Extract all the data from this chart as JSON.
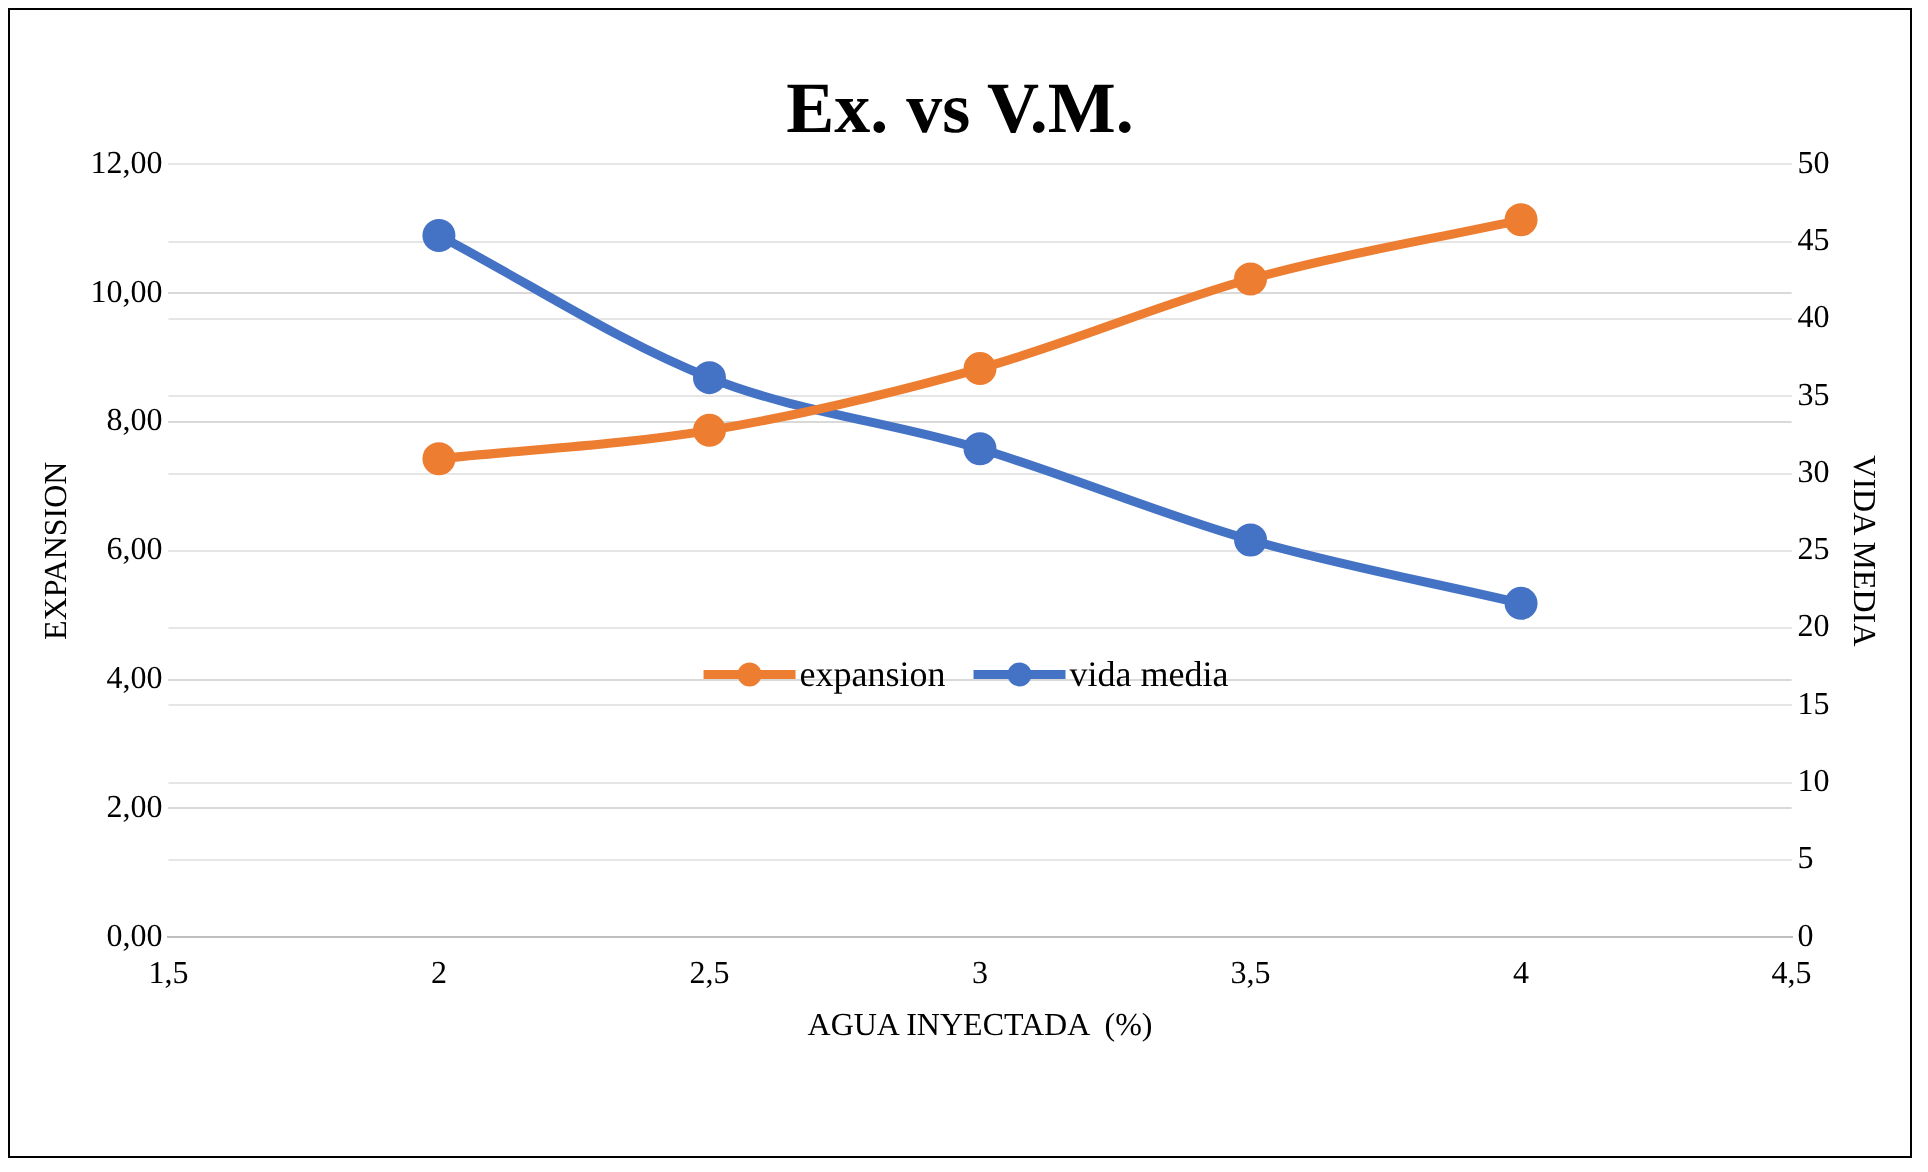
{
  "chart_data": {
    "type": "line",
    "title": "Ex. vs V.M.",
    "xlabel": "AGUA INYECTADA  (%)",
    "ylabel": "EXPANSION",
    "y2label": "VIDA MEDIA",
    "x": [
      2,
      2.5,
      3,
      3.5,
      4
    ],
    "series": [
      {
        "name": "expansion",
        "color": "#ed7d31",
        "values": [
          7.43,
          7.87,
          8.83,
          10.22,
          11.14
        ]
      },
      {
        "name": "vida media",
        "color": "#4472c4",
        "axis": "y2",
        "values": [
          45.4,
          36.2,
          31.6,
          25.7,
          21.6
        ]
      }
    ],
    "xlim": [
      1.5,
      4.5
    ],
    "xticks": [
      {
        "value": 1.5,
        "label": "1,5"
      },
      2,
      {
        "value": 2.5,
        "label": "2,5"
      },
      3,
      {
        "value": 3.5,
        "label": "3,5"
      },
      4,
      {
        "value": 4.5,
        "label": "4,5"
      }
    ],
    "ylim": [
      0,
      12
    ],
    "yticks": [
      {
        "value": 0,
        "label": "0,00"
      },
      {
        "value": 2,
        "label": "2,00"
      },
      {
        "value": 4,
        "label": "4,00"
      },
      {
        "value": 6,
        "label": "6,00"
      },
      {
        "value": 8,
        "label": "8,00"
      },
      {
        "value": 10,
        "label": "10,00"
      },
      {
        "value": 12,
        "label": "12,00"
      }
    ],
    "y2lim": [
      0,
      50
    ],
    "y2ticks": [
      0,
      5,
      10,
      15,
      20,
      25,
      30,
      35,
      40,
      45,
      50
    ],
    "grid": "y",
    "legend": "center",
    "marker": "circle",
    "line_style": "solid"
  }
}
